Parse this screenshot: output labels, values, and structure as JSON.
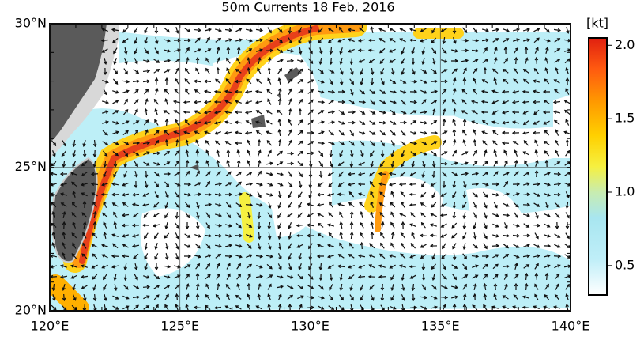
{
  "chart_data": {
    "type": "map",
    "title": "50m Currents  18 Feb. 2016",
    "xlim": [
      120,
      140
    ],
    "ylim": [
      20,
      30
    ],
    "xticks": [
      {
        "value": 120,
        "label": "120°E"
      },
      {
        "value": 125,
        "label": "125°E"
      },
      {
        "value": 130,
        "label": "130°E"
      },
      {
        "value": 135,
        "label": "135°E"
      },
      {
        "value": 140,
        "label": "140°E"
      }
    ],
    "yticks": [
      {
        "value": 20,
        "label": "20°N"
      },
      {
        "value": 25,
        "label": "25°N"
      },
      {
        "value": 30,
        "label": "30°N"
      }
    ],
    "grid": true,
    "colorbar": {
      "label": "[kt]",
      "lim": [
        0.3,
        2.05
      ],
      "ticks": [
        0.5,
        {
          "value": 1,
          "label": "1.0"
        },
        1.5,
        {
          "value": 2,
          "label": "2.0"
        }
      ]
    }
  }
}
